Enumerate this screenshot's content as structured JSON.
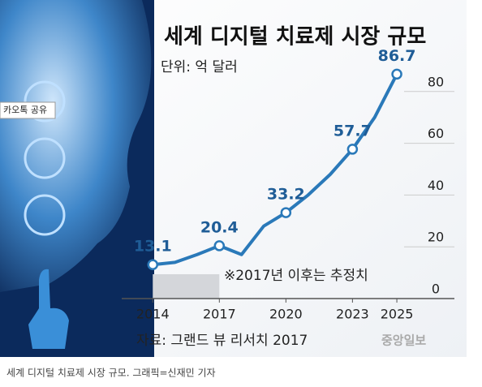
{
  "chart_data": {
    "type": "line",
    "title": "세계 디지털 치료제 시장 규모",
    "subtitle": "단위: 억 달러",
    "annotation": "※2017년 이후는 추정치",
    "source": "자료: 그랜드 뷰 리서치 2017",
    "x": [
      2014,
      2015,
      2016,
      2017,
      2018,
      2019,
      2020,
      2021,
      2022,
      2023,
      2024,
      2025
    ],
    "values": [
      13.1,
      14,
      17,
      20.4,
      17,
      28,
      33.2,
      40,
      48,
      57.7,
      70,
      86.7
    ],
    "value_labels": [
      "13.1",
      null,
      null,
      "20.4",
      null,
      null,
      "33.2",
      null,
      null,
      "57.7",
      null,
      "86.7"
    ],
    "color": "#2a79b9",
    "xlim": [
      2012.6,
      2025.4
    ],
    "xticks": [
      2014,
      2017,
      2020,
      2023,
      2025
    ],
    "ylim": [
      0,
      92
    ],
    "yticks": [
      0,
      20,
      40,
      60,
      80
    ],
    "grid": true
  },
  "logo": "중앙일보",
  "share_button": "카오톡 공유",
  "caption": "세계 디지털 치료제 시장 규모. 그래픽=신재민 기자"
}
